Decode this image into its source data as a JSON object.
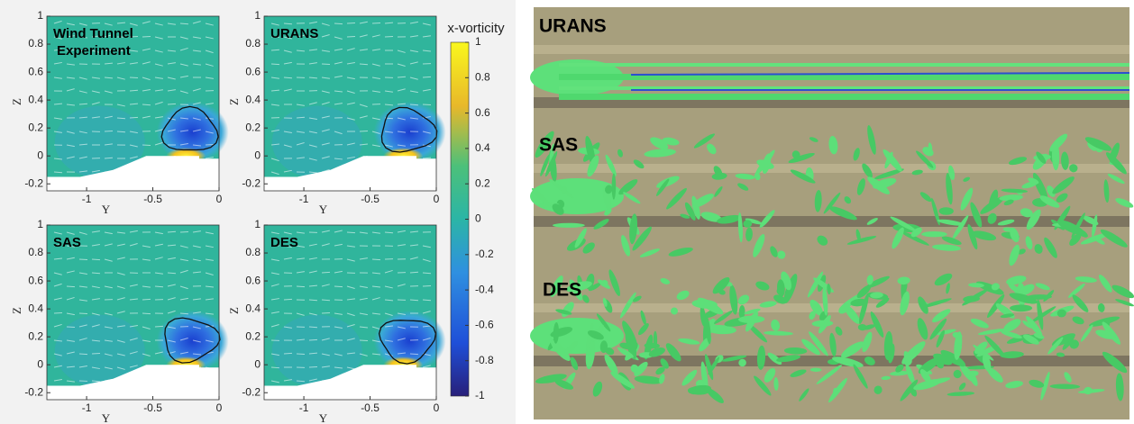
{
  "panels": [
    {
      "title_lines": [
        "Wind Tunnel",
        "Experiment"
      ]
    },
    {
      "title_lines": [
        "URANS"
      ]
    },
    {
      "title_lines": [
        "SAS"
      ]
    },
    {
      "title_lines": [
        "DES"
      ]
    }
  ],
  "axes": {
    "xlabel": "Y",
    "ylabel": "Z",
    "xlim": [
      -1.3,
      0
    ],
    "ylim": [
      -0.25,
      1
    ],
    "xticks": [
      -1,
      -0.5,
      0
    ],
    "yticks": [
      -0.2,
      0,
      0.2,
      0.4,
      0.6,
      0.8,
      1
    ]
  },
  "colorbar": {
    "label": "x-vorticity",
    "lim": [
      -1,
      1
    ],
    "ticks": [
      -1,
      -0.8,
      -0.6,
      -0.4,
      -0.2,
      0,
      0.2,
      0.4,
      0.6,
      0.8,
      1
    ]
  },
  "renderings": [
    {
      "label": "URANS"
    },
    {
      "label": "SAS"
    },
    {
      "label": "DES"
    }
  ]
}
